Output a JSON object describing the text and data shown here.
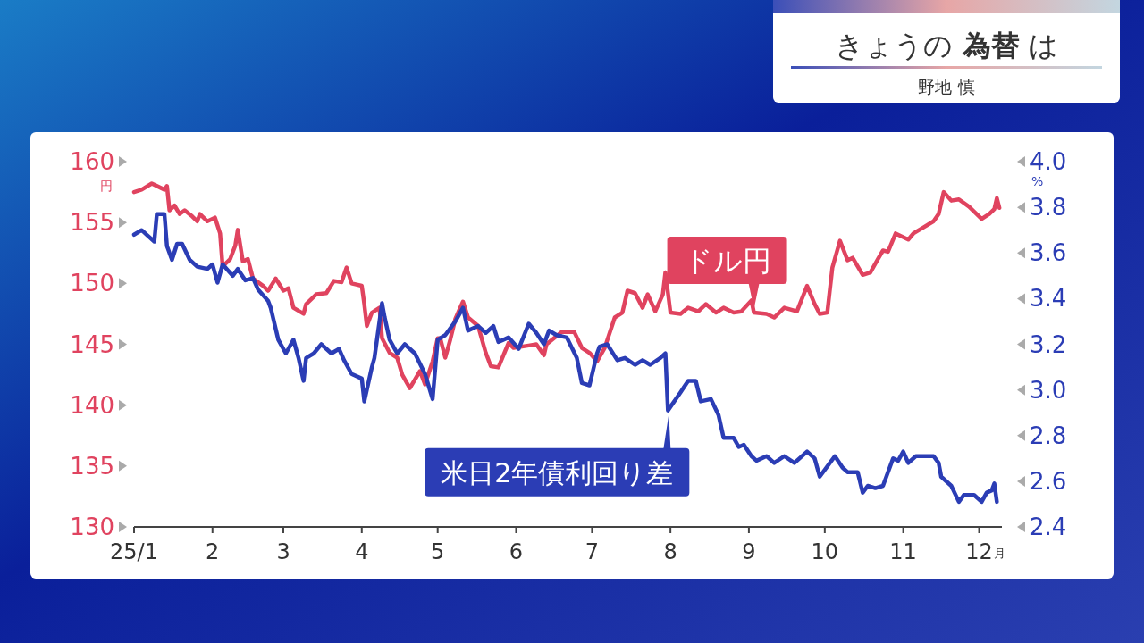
{
  "chart_data": {
    "type": "line",
    "title": "きょうの **為替** は",
    "subtitle": "野地 慎",
    "xlabel": "月",
    "ylabel": "円",
    "y2label": "%",
    "xlim": [
      "--01-01",
      "--12-10"
    ],
    "xticks": [
      {
        "value": "--01-01",
        "label": "25/1"
      },
      {
        "value": "--02-01",
        "label": "2"
      },
      {
        "value": "--03-01",
        "label": "3"
      },
      {
        "value": "--04-01",
        "label": "4"
      },
      {
        "value": "--05-01",
        "label": "5"
      },
      {
        "value": "--06-01",
        "label": "6"
      },
      {
        "value": "--07-01",
        "label": "7"
      },
      {
        "value": "--08-01",
        "label": "8"
      },
      {
        "value": "--09-01",
        "label": "9"
      },
      {
        "value": "--10-01",
        "label": "10"
      },
      {
        "value": "--11-01",
        "label": "11"
      },
      {
        "value": "--12-01",
        "label": "12"
      }
    ],
    "ylim": [
      130,
      160
    ],
    "yticks": [
      130,
      135,
      140,
      145,
      150,
      155,
      160
    ],
    "y2lim": [
      2.4,
      4.0
    ],
    "y2ticks": [
      2.4,
      2.6,
      2.8,
      {
        "value": 3.0,
        "label": "3.0"
      },
      3.2,
      3.4,
      3.6,
      3.8,
      {
        "value": 4.0,
        "label": "4.0"
      }
    ],
    "line_style": "solid",
    "series": [
      {
        "name": "ドル円",
        "color": "#e0435f",
        "x": [
          "--01-01",
          "--01-04",
          "--01-08",
          "--01-11",
          "--01-13",
          "--01-14",
          "--01-15",
          "--01-17",
          "--01-19",
          "--01-21",
          "--01-24",
          "--01-26",
          "--01-27",
          "--01-30",
          "--02-02",
          "--02-04",
          "--02-05",
          "--02-08",
          "--02-10",
          "--02-11",
          "--02-13",
          "--02-15",
          "--02-17",
          "--02-21",
          "--02-23",
          "--02-26",
          "--03-01",
          "--03-03",
          "--03-05",
          "--03-09",
          "--03-10",
          "--03-14",
          "--03-18",
          "--03-21",
          "--03-24",
          "--03-26",
          "--03-28",
          "--04-01",
          "--04-02",
          "--04-03",
          "--04-05",
          "--04-08",
          "--04-09",
          "--04-12",
          "--04-15",
          "--04-17",
          "--04-20",
          "--04-24",
          "--04-26",
          "--04-29",
          "--05-01",
          "--05-02",
          "--05-04",
          "--05-06",
          "--05-08",
          "--05-11",
          "--05-13",
          "--05-17",
          "--05-20",
          "--05-22",
          "--05-25",
          "--05-29",
          "--05-31",
          "--06-06",
          "--06-09",
          "--06-12",
          "--06-13",
          "--06-19",
          "--06-24",
          "--06-27",
          "--06-30",
          "--07-03",
          "--07-06",
          "--07-10",
          "--07-13",
          "--07-15",
          "--07-18",
          "--07-21",
          "--07-23",
          "--07-26",
          "--07-29",
          "--07-30",
          "--08-01",
          "--08-05",
          "--08-08",
          "--08-12",
          "--08-15",
          "--08-19",
          "--08-22",
          "--08-26",
          "--08-29",
          "--09-02",
          "--09-03",
          "--09-08",
          "--09-11",
          "--09-15",
          "--09-20",
          "--09-24",
          "--09-27",
          "--09-29",
          "--10-02",
          "--10-04",
          "--10-07",
          "--10-10",
          "--10-12",
          "--10-16",
          "--10-19",
          "--10-22",
          "--10-24",
          "--10-26",
          "--10-29",
          "--11-03",
          "--11-05",
          "--11-09",
          "--11-13",
          "--11-15",
          "--11-17",
          "--11-20",
          "--11-23",
          "--11-27",
          "--11-30",
          "--12-02",
          "--12-05",
          "--12-07",
          "--12-08",
          "--12-09"
        ],
        "values": [
          157.5,
          157.7,
          158.2,
          157.9,
          157.7,
          158.0,
          156.0,
          156.4,
          155.7,
          156.0,
          155.5,
          155.1,
          155.7,
          155.1,
          155.4,
          154.1,
          151.4,
          152.0,
          153.1,
          154.4,
          151.8,
          152.0,
          150.4,
          149.8,
          149.4,
          150.4,
          149.4,
          149.6,
          148.0,
          147.5,
          148.3,
          149.1,
          149.2,
          150.2,
          150.1,
          151.3,
          150.0,
          149.8,
          148.3,
          146.5,
          147.6,
          148.0,
          145.5,
          144.3,
          143.9,
          142.5,
          141.4,
          142.8,
          141.7,
          143.6,
          145.5,
          145.5,
          143.9,
          145.4,
          147.1,
          148.5,
          147.2,
          146.5,
          144.3,
          143.2,
          143.1,
          145.1,
          144.7,
          144.9,
          145.0,
          144.1,
          145.0,
          146.0,
          146.0,
          144.7,
          144.3,
          143.6,
          144.7,
          147.2,
          147.6,
          149.4,
          149.2,
          148.0,
          149.1,
          147.7,
          149.1,
          150.9,
          147.6,
          147.5,
          148.0,
          147.7,
          148.3,
          147.6,
          148.0,
          147.6,
          147.7,
          148.6,
          147.6,
          147.5,
          147.2,
          148.0,
          147.7,
          149.8,
          148.3,
          147.5,
          147.6,
          151.3,
          153.5,
          151.9,
          152.1,
          150.7,
          150.9,
          152.0,
          152.7,
          152.6,
          154.1,
          153.6,
          154.1,
          154.6,
          155.1,
          155.7,
          157.5,
          156.8,
          156.9,
          156.3,
          155.7,
          155.3,
          155.7,
          156.1,
          157.0,
          156.2
        ]
      },
      {
        "name": "米日2年債利回り差",
        "color": "#2b3db5",
        "axis": "y2",
        "x": [
          "--01-01",
          "--01-04",
          "--01-06",
          "--01-09",
          "--01-10",
          "--01-13",
          "--01-14",
          "--01-16",
          "--01-18",
          "--01-20",
          "--01-23",
          "--01-26",
          "--01-30",
          "--02-01",
          "--02-03",
          "--02-05",
          "--02-09",
          "--02-11",
          "--02-14",
          "--02-17",
          "--02-19",
          "--02-23",
          "--02-24",
          "--02-27",
          "--03-02",
          "--03-05",
          "--03-07",
          "--03-09",
          "--03-10",
          "--03-13",
          "--03-16",
          "--03-20",
          "--03-23",
          "--03-25",
          "--03-28",
          "--04-01",
          "--04-02",
          "--04-05",
          "--04-06",
          "--04-09",
          "--04-10",
          "--04-12",
          "--04-15",
          "--04-18",
          "--04-22",
          "--04-26",
          "--04-29",
          "--05-01",
          "--05-04",
          "--05-08",
          "--05-11",
          "--05-13",
          "--05-17",
          "--05-20",
          "--05-23",
          "--05-25",
          "--05-29",
          "--06-02",
          "--06-06",
          "--06-09",
          "--06-12",
          "--06-14",
          "--06-17",
          "--06-21",
          "--06-25",
          "--06-27",
          "--06-30",
          "--07-03",
          "--07-04",
          "--07-07",
          "--07-11",
          "--07-14",
          "--07-18",
          "--07-21",
          "--07-24",
          "--07-28",
          "--07-30",
          "--07-31",
          "--08-05",
          "--08-08",
          "--08-11",
          "--08-13",
          "--08-17",
          "--08-20",
          "--08-22",
          "--08-26",
          "--08-28",
          "--08-30",
          "--09-02",
          "--09-04",
          "--09-08",
          "--09-11",
          "--09-15",
          "--09-19",
          "--09-24",
          "--09-27",
          "--09-29",
          "--10-03",
          "--10-05",
          "--10-08",
          "--10-10",
          "--10-14",
          "--10-16",
          "--10-18",
          "--10-21",
          "--10-24",
          "--10-28",
          "--10-30",
          "--11-01",
          "--11-03",
          "--11-06",
          "--11-08",
          "--11-13",
          "--11-15",
          "--11-16",
          "--11-20",
          "--11-23",
          "--11-25",
          "--11-29",
          "--12-02",
          "--12-04",
          "--12-06",
          "--12-07",
          "--12-08"
        ],
        "values": [
          3.68,
          3.7,
          3.68,
          3.65,
          3.77,
          3.77,
          3.63,
          3.57,
          3.64,
          3.64,
          3.57,
          3.54,
          3.53,
          3.55,
          3.47,
          3.55,
          3.5,
          3.53,
          3.48,
          3.49,
          3.44,
          3.39,
          3.36,
          3.22,
          3.16,
          3.22,
          3.14,
          3.04,
          3.14,
          3.16,
          3.2,
          3.16,
          3.18,
          3.13,
          3.07,
          3.05,
          2.95,
          3.1,
          3.14,
          3.38,
          3.32,
          3.22,
          3.16,
          3.2,
          3.16,
          3.07,
          2.96,
          3.22,
          3.24,
          3.3,
          3.36,
          3.26,
          3.28,
          3.25,
          3.28,
          3.21,
          3.23,
          3.18,
          3.29,
          3.25,
          3.2,
          3.26,
          3.24,
          3.23,
          3.14,
          3.03,
          3.02,
          3.16,
          3.19,
          3.2,
          3.13,
          3.14,
          3.11,
          3.13,
          3.11,
          3.14,
          3.16,
          2.91,
          2.99,
          3.04,
          3.04,
          2.95,
          2.96,
          2.89,
          2.79,
          2.79,
          2.75,
          2.76,
          2.71,
          2.69,
          2.71,
          2.68,
          2.71,
          2.68,
          2.73,
          2.7,
          2.62,
          2.68,
          2.71,
          2.66,
          2.64,
          2.64,
          2.55,
          2.58,
          2.57,
          2.58,
          2.7,
          2.69,
          2.73,
          2.68,
          2.71,
          2.71,
          2.71,
          2.68,
          2.62,
          2.58,
          2.51,
          2.54,
          2.54,
          2.51,
          2.55,
          2.56,
          2.59,
          2.51
        ]
      }
    ]
  }
}
